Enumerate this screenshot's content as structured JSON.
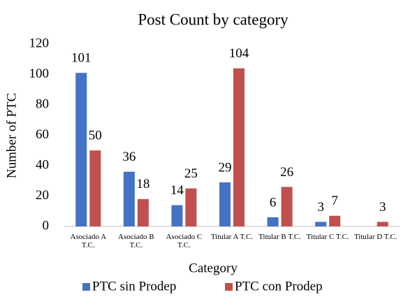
{
  "chart_data": {
    "type": "bar",
    "title": "Post Count by category",
    "x_label": "Category",
    "y_label": "Number of PTC",
    "categories": [
      "Asociado A T.C.",
      "Asociado B T.C.",
      "Asociado C T.C.",
      "Titular A T.C.",
      "Titular B T.C.",
      "Titular C T.C.",
      "Titular D T.C."
    ],
    "series": [
      {
        "name": "PTC sin Prodep",
        "color": "#4472c4",
        "values": [
          101,
          36,
          14,
          29,
          6,
          3,
          null
        ]
      },
      {
        "name": "PTC con Prodep",
        "color": "#c0504d",
        "values": [
          50,
          18,
          25,
          104,
          26,
          7,
          3
        ]
      }
    ],
    "ylim": [
      0,
      120
    ],
    "yticks": [
      0,
      20,
      40,
      60,
      80,
      100,
      120
    ],
    "legend": "bottom"
  }
}
